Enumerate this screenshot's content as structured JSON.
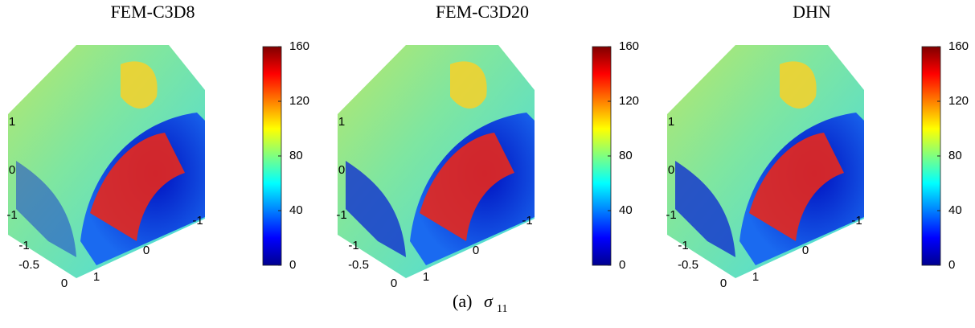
{
  "panels": [
    {
      "title": "FEM-C3D8",
      "z_ticks": [
        "1",
        "0",
        "-1"
      ],
      "x_ticks": [
        "-1",
        "-0.5",
        "0"
      ],
      "y_ticks": [
        "1",
        "0",
        "-1"
      ],
      "colorbar": {
        "lim": [
          0,
          160
        ],
        "ticks": [
          0,
          40,
          80,
          120,
          160
        ]
      }
    },
    {
      "title": "FEM-C3D20",
      "z_ticks": [
        "1",
        "0",
        "-1"
      ],
      "x_ticks": [
        "-1",
        "-0.5",
        "0"
      ],
      "y_ticks": [
        "1",
        "0",
        "-1"
      ],
      "colorbar": {
        "lim": [
          0,
          160
        ],
        "ticks": [
          0,
          40,
          80,
          120,
          160
        ]
      }
    },
    {
      "title": "DHN",
      "z_ticks": [
        "1",
        "0",
        "-1"
      ],
      "x_ticks": [
        "-1",
        "-0.5",
        "0"
      ],
      "y_ticks": [
        "1",
        "0",
        "-1"
      ],
      "colorbar": {
        "lim": [
          0,
          160
        ],
        "ticks": [
          0,
          40,
          80,
          120,
          160
        ]
      }
    }
  ],
  "caption": {
    "label": "(a)",
    "symbol": "σ",
    "subscript": "11"
  }
}
